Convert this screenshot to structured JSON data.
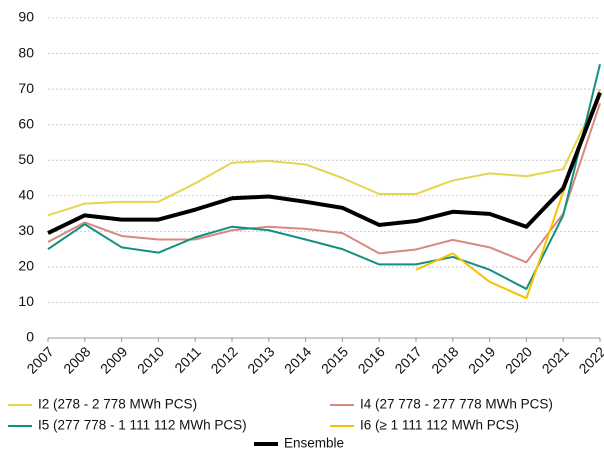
{
  "chart_data": {
    "type": "line",
    "x": [
      2007,
      2008,
      2009,
      2010,
      2011,
      2012,
      2013,
      2014,
      2015,
      2016,
      2017,
      2018,
      2019,
      2020,
      2021,
      2022
    ],
    "xlim": [
      2007,
      2022
    ],
    "xticks": [
      2007,
      2008,
      2009,
      2010,
      2011,
      2012,
      2013,
      2014,
      2015,
      2016,
      2017,
      2018,
      2019,
      2020,
      2021,
      2022
    ],
    "ylim": [
      0,
      90
    ],
    "yticks": [
      0,
      10,
      20,
      30,
      40,
      50,
      60,
      70,
      80,
      90
    ],
    "grid": true,
    "legend": "bottom",
    "series": [
      {
        "name": "I2 (278 - 2 778 MWh PCS)",
        "color": "#e6d54e",
        "width": 2,
        "values": [
          34.5,
          37.8,
          38.3,
          38.3,
          43.5,
          49.3,
          49.8,
          48.8,
          45,
          40.5,
          40.5,
          44.3,
          46.3,
          45.5,
          47.5,
          69
        ]
      },
      {
        "name": "I4 (27 778 - 277 778 MWh PCS)",
        "color": "#d8897c",
        "width": 2,
        "values": [
          27,
          32.5,
          28.7,
          27.7,
          27.7,
          30.3,
          31.3,
          30.7,
          29.5,
          23.8,
          24.9,
          27.6,
          25.5,
          21.3,
          35,
          66
        ]
      },
      {
        "name": "I5 (277 778 - 1 111 112 MWh PCS)",
        "color": "#13907f",
        "width": 2,
        "values": [
          25,
          32,
          25.5,
          24,
          28.3,
          31.3,
          30.3,
          27.7,
          25,
          20.7,
          20.7,
          22.8,
          19.2,
          13.8,
          34.5,
          77
        ]
      },
      {
        "name": "I6 (≥ 1 111 112 MWh PCS)",
        "color": "#f4c300",
        "width": 2,
        "values": [
          null,
          null,
          null,
          null,
          null,
          null,
          null,
          null,
          null,
          null,
          19.2,
          23.8,
          15.8,
          11.2,
          41,
          70
        ]
      },
      {
        "name": "Ensemble",
        "color": "#000000",
        "width": 4,
        "values": [
          29.5,
          34.5,
          33.3,
          33.3,
          36.1,
          39.3,
          39.8,
          38.3,
          36.6,
          31.8,
          32.9,
          35.5,
          34.9,
          31.3,
          42.1,
          69
        ]
      }
    ]
  }
}
